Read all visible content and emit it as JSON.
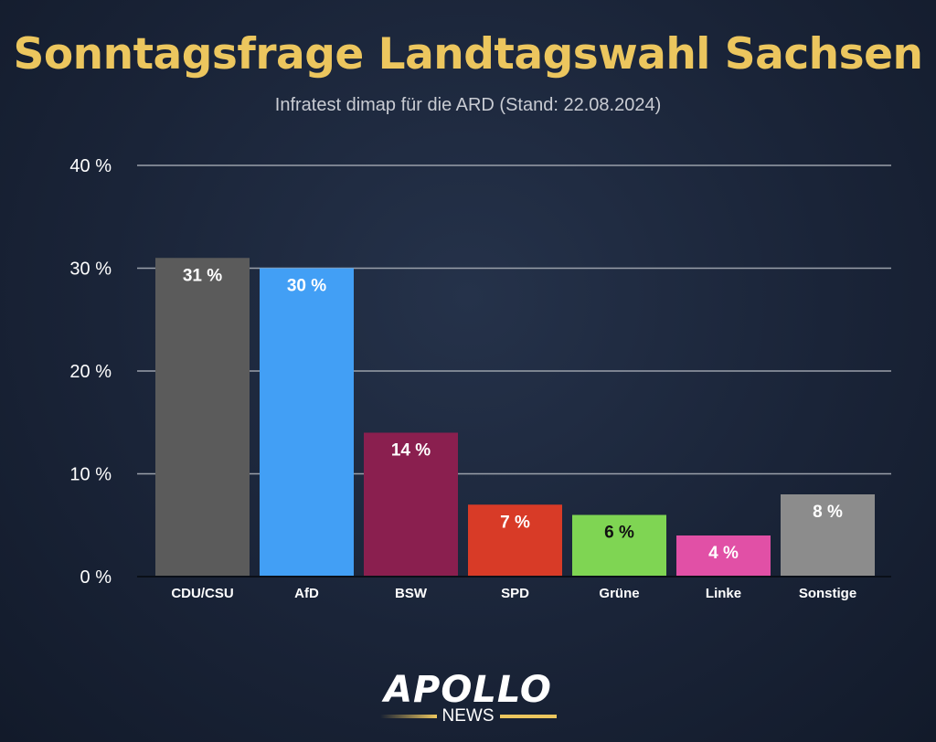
{
  "chart_data": {
    "type": "bar",
    "title": "Sonntagsfrage Landtagswahl Sachsen",
    "subtitle": "Infratest dimap für die ARD (Stand: 22.08.2024)",
    "xlabel": "",
    "ylabel": "",
    "ylim": [
      0,
      40
    ],
    "yticks": [
      0,
      10,
      20,
      30,
      40
    ],
    "ytick_labels": [
      "0 %",
      "10 %",
      "20 %",
      "30 %",
      "40 %"
    ],
    "grid": true,
    "categories": [
      "CDU/CSU",
      "AfD",
      "BSW",
      "SPD",
      "Grüne",
      "Linke",
      "Sonstige"
    ],
    "values": [
      31,
      30,
      14,
      7,
      6,
      4,
      8
    ],
    "data_labels": [
      "31 %",
      "30 %",
      "14 %",
      "7 %",
      "6 %",
      "4 %",
      "8 %"
    ],
    "colors": [
      "#5b5b5b",
      "#429ff5",
      "#8a1f4f",
      "#d83b27",
      "#7fd553",
      "#e150a6",
      "#8c8c8c"
    ],
    "label_colors": [
      "#ffffff",
      "#ffffff",
      "#ffffff",
      "#ffffff",
      "#111111",
      "#ffffff",
      "#ffffff"
    ]
  },
  "logo": {
    "main": "APOLLO",
    "sub": "NEWS"
  },
  "colors": {
    "title": "#ecc65e",
    "grid": "#9aa0aa"
  }
}
